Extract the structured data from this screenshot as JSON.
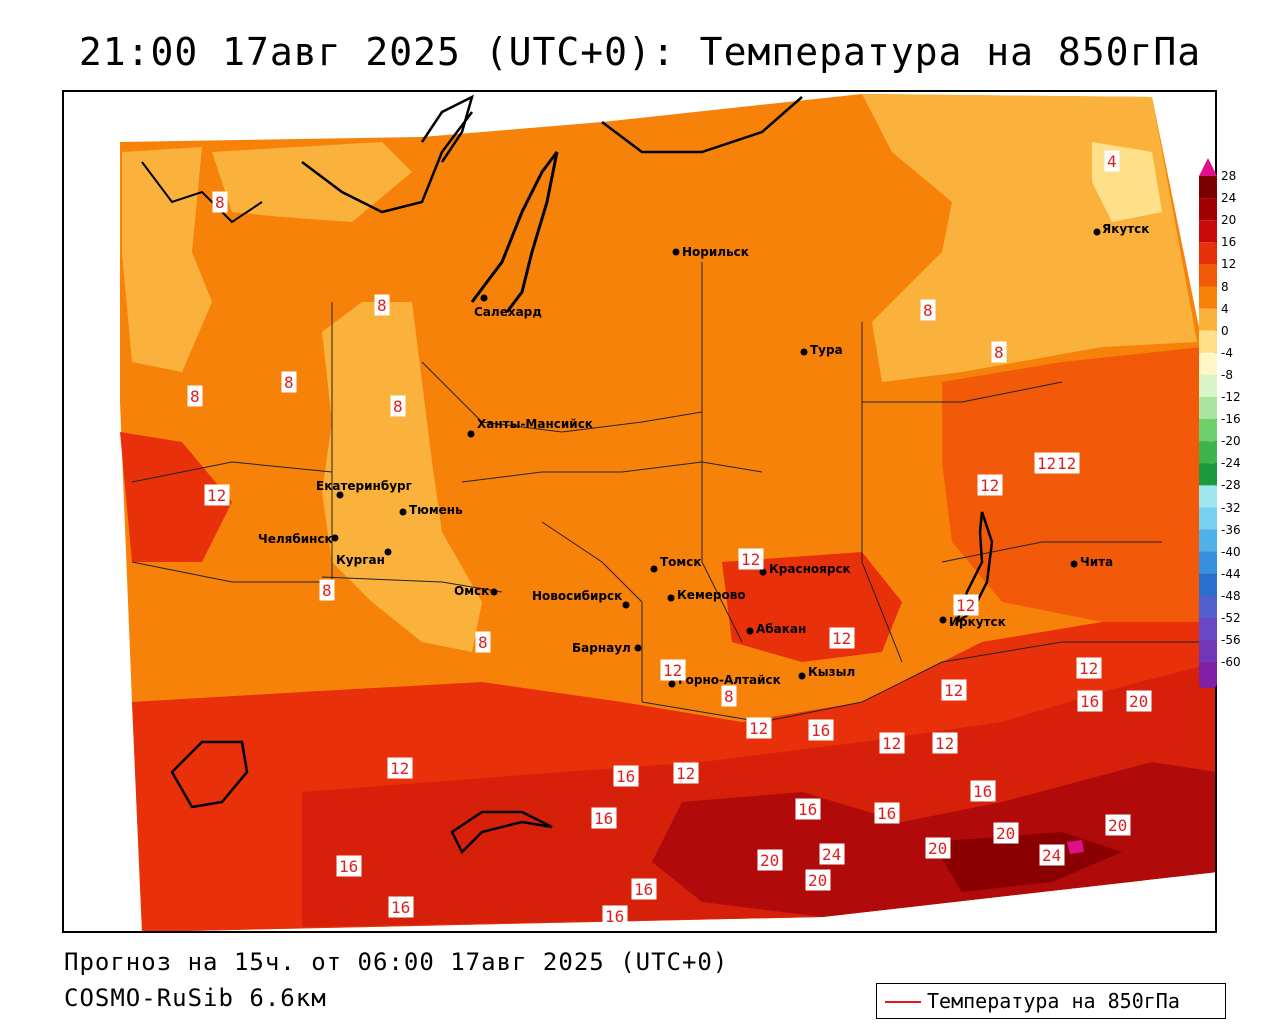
{
  "title": "21:00 17авг 2025 (UTC+0): Температура на 850гПа",
  "forecast_line": "Прогноз на 15ч. от 06:00 17авг 2025 (UTC+0)",
  "model_line": "COSMO-RuSib 6.6км",
  "legend": {
    "label": "Температура на 850гПа",
    "line_color": "#e8141c"
  },
  "colorbar": {
    "ticks": [
      "28",
      "24",
      "20",
      "16",
      "12",
      "8",
      "4",
      "0",
      "-4",
      "-8",
      "-12",
      "-16",
      "-20",
      "-24",
      "-28",
      "-32",
      "-36",
      "-40",
      "-44",
      "-48",
      "-52",
      "-56",
      "-60"
    ],
    "colors": [
      "#7a0000",
      "#a00000",
      "#c80a0a",
      "#e8300a",
      "#f25a0a",
      "#f7820a",
      "#fbb23c",
      "#ffe08a",
      "#fff6c8",
      "#d8f5c8",
      "#a8e6a0",
      "#6ccf6c",
      "#3cb44c",
      "#1a9a3c",
      "#a0e8f0",
      "#78d0f0",
      "#50b0e8",
      "#3890e0",
      "#2870d0",
      "#5060d0",
      "#6848c8",
      "#7038b8",
      "#8020a8"
    ]
  },
  "cities": [
    {
      "name": "Якутск"
    },
    {
      "name": "Норильск"
    },
    {
      "name": "Салехард"
    },
    {
      "name": "Тура"
    },
    {
      "name": "Ханты-Мансийск"
    },
    {
      "name": "Екатеринбург"
    },
    {
      "name": "Тюмень"
    },
    {
      "name": "Челябинск"
    },
    {
      "name": "Курган"
    },
    {
      "name": "Омск"
    },
    {
      "name": "Новосибирск"
    },
    {
      "name": "Томск"
    },
    {
      "name": "Красноярск"
    },
    {
      "name": "Кемерово"
    },
    {
      "name": "Барнаул"
    },
    {
      "name": "Абакан"
    },
    {
      "name": "Горно-Алтайск"
    },
    {
      "name": "Кызыл"
    },
    {
      "name": "Иркутск"
    },
    {
      "name": "Чита"
    }
  ],
  "contour_labels": [
    "8",
    "8",
    "8",
    "8",
    "8",
    "8",
    "8",
    "8",
    "8",
    "8",
    "4",
    "12",
    "12",
    "12",
    "12",
    "12",
    "12",
    "12",
    "12",
    "12",
    "12",
    "12",
    "12",
    "12",
    "12",
    "12",
    "16",
    "16",
    "16",
    "16",
    "16",
    "16",
    "16",
    "16",
    "16",
    "16",
    "16",
    "20",
    "20",
    "20",
    "20",
    "20",
    "20",
    "24",
    "24"
  ]
}
